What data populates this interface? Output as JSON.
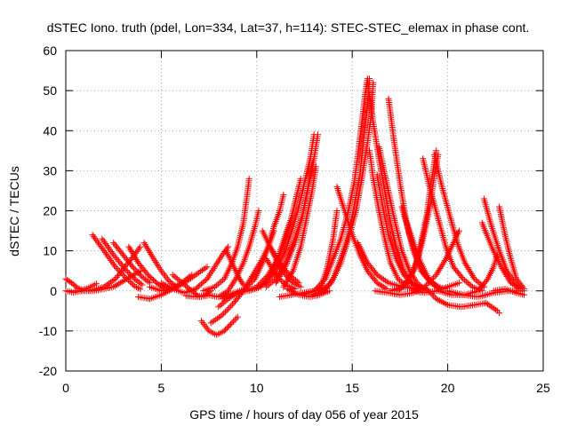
{
  "chart_data": {
    "type": "scatter",
    "title": "dSTEC Iono. truth (pdel, Lon=334, Lat=37, h=114): STEC-STEC_elemax in phase cont.",
    "xlabel": "GPS time / hours of day 056 of year 2015",
    "ylabel": "dSTEC  / TECUs",
    "xlim": [
      0,
      25
    ],
    "ylim": [
      -20,
      60
    ],
    "xticks": [
      0,
      5,
      10,
      15,
      20,
      25
    ],
    "yticks": [
      -20,
      -10,
      0,
      10,
      20,
      30,
      40,
      50,
      60
    ],
    "grid": true,
    "marker": "+",
    "series_color": "#ff0000",
    "arcs": [
      [
        [
          0.0,
          3
        ],
        [
          0.3,
          2
        ],
        [
          0.6,
          0.8
        ],
        [
          1.0,
          0
        ]
      ],
      [
        [
          0.0,
          0
        ],
        [
          0.4,
          -0.4
        ],
        [
          0.8,
          0
        ],
        [
          1.2,
          0.8
        ],
        [
          1.6,
          1.8
        ]
      ],
      [
        [
          1.4,
          14
        ],
        [
          2.0,
          10
        ],
        [
          2.6,
          6
        ],
        [
          3.2,
          3
        ],
        [
          3.6,
          1.2
        ],
        [
          3.9,
          0.4
        ]
      ],
      [
        [
          1.9,
          13
        ],
        [
          2.5,
          9
        ],
        [
          3.1,
          5.5
        ],
        [
          3.6,
          3
        ],
        [
          4.0,
          1.5
        ]
      ],
      [
        [
          2.5,
          12
        ],
        [
          3.0,
          9
        ],
        [
          3.5,
          6
        ],
        [
          4.0,
          3.5
        ],
        [
          4.4,
          2
        ]
      ],
      [
        [
          3.3,
          11
        ],
        [
          3.8,
          7
        ],
        [
          4.3,
          4
        ],
        [
          4.8,
          1.8
        ],
        [
          5.2,
          0.6
        ]
      ],
      [
        [
          4.1,
          12
        ],
        [
          4.6,
          8
        ],
        [
          5.0,
          5
        ],
        [
          5.4,
          2.5
        ],
        [
          5.8,
          1
        ]
      ],
      [
        [
          1.2,
          0
        ],
        [
          2.0,
          1
        ],
        [
          2.6,
          3
        ],
        [
          3.1,
          6
        ],
        [
          3.6,
          9
        ],
        [
          3.9,
          11
        ]
      ],
      [
        [
          0.5,
          0
        ],
        [
          1.5,
          0
        ],
        [
          2.5,
          1
        ],
        [
          3.2,
          3
        ],
        [
          3.9,
          5
        ]
      ],
      [
        [
          3.8,
          -1.5
        ],
        [
          4.4,
          -2
        ],
        [
          5.0,
          -1
        ],
        [
          5.6,
          0.5
        ],
        [
          6.2,
          2.5
        ],
        [
          6.6,
          4
        ]
      ],
      [
        [
          4.4,
          1
        ],
        [
          5.0,
          0
        ],
        [
          5.6,
          0.5
        ],
        [
          6.2,
          2
        ],
        [
          6.8,
          4
        ],
        [
          7.4,
          6
        ]
      ],
      [
        [
          5.0,
          2
        ],
        [
          5.6,
          0.5
        ],
        [
          6.2,
          -0.5
        ],
        [
          6.8,
          0.5
        ],
        [
          7.4,
          3
        ],
        [
          7.8,
          6
        ],
        [
          8.2,
          9
        ],
        [
          8.5,
          11
        ]
      ],
      [
        [
          6.3,
          -1.2
        ],
        [
          6.8,
          -1.5
        ],
        [
          7.3,
          -1
        ],
        [
          7.6,
          0
        ]
      ],
      [
        [
          5.6,
          4
        ],
        [
          6.1,
          2
        ],
        [
          6.6,
          0
        ],
        [
          7.0,
          -1.5
        ],
        [
          7.4,
          -1.2
        ]
      ],
      [
        [
          7.1,
          -7.5
        ],
        [
          7.5,
          -10
        ],
        [
          7.9,
          -11
        ],
        [
          8.3,
          -10
        ],
        [
          8.7,
          -8
        ],
        [
          9.0,
          -6.5
        ]
      ],
      [
        [
          7.6,
          -8
        ],
        [
          8.2,
          -6
        ],
        [
          8.8,
          -3
        ],
        [
          9.3,
          0
        ],
        [
          9.8,
          4
        ],
        [
          10.3,
          8
        ],
        [
          10.6,
          11
        ],
        [
          10.9,
          15
        ]
      ],
      [
        [
          7.4,
          -1
        ],
        [
          8.0,
          -1.5
        ],
        [
          8.5,
          0
        ],
        [
          8.9,
          3
        ],
        [
          9.3,
          7
        ],
        [
          9.6,
          11
        ],
        [
          9.9,
          16
        ],
        [
          10.1,
          20
        ]
      ],
      [
        [
          7.2,
          0
        ],
        [
          7.8,
          1
        ],
        [
          8.3,
          3
        ],
        [
          8.7,
          7
        ],
        [
          9.0,
          11
        ],
        [
          9.3,
          17
        ],
        [
          9.5,
          24
        ],
        [
          9.6,
          28
        ]
      ],
      [
        [
          8.0,
          -4
        ],
        [
          8.5,
          -2
        ],
        [
          9.0,
          -0.5
        ],
        [
          9.5,
          0
        ],
        [
          10.0,
          1
        ],
        [
          10.6,
          4
        ],
        [
          11.1,
          8
        ],
        [
          11.5,
          14
        ],
        [
          11.8,
          18
        ]
      ],
      [
        [
          8.2,
          -2
        ],
        [
          8.8,
          -0.5
        ],
        [
          9.4,
          0.5
        ],
        [
          9.9,
          3
        ],
        [
          10.3,
          7
        ],
        [
          10.6,
          11
        ],
        [
          10.9,
          16
        ],
        [
          11.2,
          20
        ],
        [
          11.4,
          24
        ]
      ],
      [
        [
          8.4,
          10
        ],
        [
          8.8,
          6
        ],
        [
          9.1,
          3
        ],
        [
          9.3,
          1.5
        ]
      ],
      [
        [
          9.6,
          0
        ],
        [
          10.2,
          1
        ],
        [
          10.7,
          4
        ],
        [
          11.1,
          8
        ],
        [
          11.5,
          13
        ],
        [
          11.8,
          18
        ],
        [
          12.1,
          24
        ],
        [
          12.3,
          28
        ]
      ],
      [
        [
          9.9,
          0.5
        ],
        [
          10.5,
          2
        ],
        [
          11.0,
          5
        ],
        [
          11.5,
          10
        ],
        [
          11.9,
          16
        ],
        [
          12.2,
          21
        ],
        [
          12.5,
          27
        ],
        [
          12.8,
          33
        ],
        [
          13.0,
          39
        ]
      ],
      [
        [
          10.5,
          1
        ],
        [
          11.0,
          3
        ],
        [
          11.5,
          7
        ],
        [
          12.0,
          13
        ],
        [
          12.4,
          19
        ],
        [
          12.7,
          26
        ],
        [
          13.0,
          33
        ],
        [
          13.2,
          39
        ]
      ],
      [
        [
          11.0,
          2
        ],
        [
          11.5,
          6
        ],
        [
          12.0,
          12
        ],
        [
          12.4,
          19
        ],
        [
          12.7,
          26
        ],
        [
          12.9,
          32
        ]
      ],
      [
        [
          11.4,
          1
        ],
        [
          11.9,
          5
        ],
        [
          12.3,
          11
        ],
        [
          12.6,
          18
        ],
        [
          12.9,
          25
        ],
        [
          13.1,
          31
        ]
      ],
      [
        [
          10.3,
          15
        ],
        [
          10.7,
          11
        ],
        [
          11.1,
          7
        ],
        [
          11.5,
          4
        ],
        [
          11.9,
          2
        ],
        [
          12.3,
          1
        ]
      ],
      [
        [
          10.7,
          11
        ],
        [
          11.2,
          7
        ],
        [
          11.7,
          4
        ],
        [
          12.2,
          2
        ]
      ],
      [
        [
          10.5,
          8
        ],
        [
          11.0,
          4
        ],
        [
          11.5,
          1.5
        ],
        [
          12.0,
          0.5
        ]
      ],
      [
        [
          11.2,
          -1.5
        ],
        [
          11.8,
          -1
        ],
        [
          12.4,
          -0.5
        ],
        [
          13.0,
          0
        ],
        [
          13.6,
          1
        ]
      ],
      [
        [
          11.6,
          0.5
        ],
        [
          12.2,
          -1
        ],
        [
          12.8,
          -1.5
        ],
        [
          13.3,
          -1
        ],
        [
          13.8,
          0
        ]
      ],
      [
        [
          12.4,
          -1
        ],
        [
          13.0,
          0
        ],
        [
          13.6,
          3
        ],
        [
          14.0,
          8
        ],
        [
          14.4,
          13
        ],
        [
          14.8,
          20
        ],
        [
          15.1,
          27
        ],
        [
          15.3,
          34
        ],
        [
          15.5,
          42
        ],
        [
          15.7,
          50
        ],
        [
          15.8,
          53
        ]
      ],
      [
        [
          12.9,
          -1
        ],
        [
          13.5,
          0
        ],
        [
          14.0,
          3
        ],
        [
          14.4,
          8
        ],
        [
          14.8,
          14
        ],
        [
          15.1,
          21
        ],
        [
          15.4,
          29
        ],
        [
          15.6,
          38
        ],
        [
          15.8,
          46
        ],
        [
          15.9,
          53
        ]
      ],
      [
        [
          13.4,
          -0.5
        ],
        [
          13.9,
          2
        ],
        [
          14.4,
          7
        ],
        [
          14.8,
          13
        ],
        [
          15.2,
          20
        ],
        [
          15.5,
          28
        ],
        [
          15.8,
          37
        ],
        [
          16.0,
          44
        ],
        [
          16.1,
          52
        ]
      ],
      [
        [
          13.3,
          0
        ],
        [
          13.7,
          6
        ],
        [
          14.0,
          13
        ],
        [
          14.2,
          20
        ]
      ],
      [
        [
          14.2,
          26
        ],
        [
          14.6,
          20
        ],
        [
          15.0,
          14
        ],
        [
          15.4,
          9
        ],
        [
          15.8,
          5
        ],
        [
          16.3,
          2
        ],
        [
          16.8,
          0.5
        ]
      ],
      [
        [
          15.3,
          12
        ],
        [
          15.8,
          7
        ],
        [
          16.3,
          4
        ],
        [
          16.9,
          2
        ],
        [
          17.6,
          1
        ],
        [
          18.4,
          0.5
        ]
      ],
      [
        [
          15.9,
          35
        ],
        [
          16.1,
          28
        ],
        [
          16.4,
          20
        ],
        [
          16.7,
          13
        ],
        [
          17.0,
          7
        ],
        [
          17.4,
          3
        ],
        [
          17.9,
          1
        ],
        [
          18.4,
          0
        ]
      ],
      [
        [
          16.3,
          29
        ],
        [
          16.6,
          21
        ],
        [
          16.9,
          14
        ],
        [
          17.3,
          8
        ],
        [
          17.7,
          4
        ],
        [
          18.2,
          1.5
        ],
        [
          18.7,
          0.5
        ]
      ],
      [
        [
          16.4,
          36
        ],
        [
          16.8,
          27
        ],
        [
          17.2,
          18
        ],
        [
          17.6,
          10
        ],
        [
          18.0,
          5
        ],
        [
          18.4,
          2
        ],
        [
          18.9,
          0
        ]
      ],
      [
        [
          15.8,
          52
        ],
        [
          16.1,
          42
        ],
        [
          16.4,
          33
        ],
        [
          16.7,
          25
        ],
        [
          17.0,
          17
        ],
        [
          17.3,
          11
        ],
        [
          17.7,
          5
        ],
        [
          18.1,
          2
        ],
        [
          18.6,
          0.5
        ]
      ],
      [
        [
          16.2,
          0
        ],
        [
          16.9,
          -0.5
        ],
        [
          17.5,
          -1
        ],
        [
          18.2,
          -0.5
        ],
        [
          18.8,
          1
        ],
        [
          19.4,
          4
        ],
        [
          19.9,
          8
        ],
        [
          20.3,
          12
        ],
        [
          20.6,
          15
        ]
      ],
      [
        [
          17.0,
          0
        ],
        [
          17.6,
          1
        ],
        [
          18.1,
          4
        ],
        [
          18.5,
          9
        ],
        [
          18.8,
          15
        ],
        [
          19.1,
          22
        ],
        [
          19.3,
          29
        ],
        [
          19.5,
          34
        ]
      ],
      [
        [
          17.4,
          0
        ],
        [
          17.9,
          2
        ],
        [
          18.3,
          6
        ],
        [
          18.6,
          12
        ],
        [
          18.9,
          19
        ],
        [
          19.1,
          26
        ],
        [
          19.3,
          32
        ],
        [
          19.4,
          35
        ]
      ],
      [
        [
          16.9,
          48
        ],
        [
          17.2,
          37
        ],
        [
          17.5,
          27
        ],
        [
          17.8,
          18
        ],
        [
          18.2,
          10
        ],
        [
          18.6,
          5
        ],
        [
          19.1,
          2
        ],
        [
          19.6,
          0.5
        ]
      ],
      [
        [
          17.6,
          21
        ],
        [
          18.0,
          14
        ],
        [
          18.4,
          8
        ],
        [
          18.8,
          4
        ],
        [
          19.3,
          1.5
        ],
        [
          19.8,
          0.5
        ]
      ],
      [
        [
          17.8,
          18
        ],
        [
          18.2,
          12
        ],
        [
          18.6,
          7
        ],
        [
          19.0,
          3
        ],
        [
          19.5,
          1
        ]
      ],
      [
        [
          18.2,
          0
        ],
        [
          18.8,
          -0.5
        ],
        [
          19.4,
          0
        ],
        [
          20.0,
          1
        ],
        [
          20.6,
          2
        ]
      ],
      [
        [
          18.7,
          33
        ],
        [
          19.1,
          25
        ],
        [
          19.5,
          18
        ],
        [
          19.9,
          11
        ],
        [
          20.3,
          6
        ],
        [
          20.8,
          3
        ],
        [
          21.3,
          1
        ],
        [
          21.8,
          0
        ]
      ],
      [
        [
          19.3,
          34
        ],
        [
          19.7,
          26
        ],
        [
          20.1,
          19
        ],
        [
          20.5,
          12
        ],
        [
          20.9,
          7
        ],
        [
          21.4,
          3
        ],
        [
          21.9,
          1
        ]
      ],
      [
        [
          18.8,
          1
        ],
        [
          19.4,
          -2
        ],
        [
          20.0,
          -3.5
        ],
        [
          20.7,
          -4
        ],
        [
          21.4,
          -3.5
        ],
        [
          22.0,
          -3
        ],
        [
          22.6,
          -5
        ],
        [
          22.7,
          -5.5
        ]
      ],
      [
        [
          19.5,
          0
        ],
        [
          20.2,
          -1
        ],
        [
          20.9,
          -1
        ],
        [
          21.6,
          0
        ],
        [
          22.1,
          3
        ],
        [
          22.4,
          6
        ],
        [
          22.6,
          9
        ]
      ],
      [
        [
          21.8,
          17
        ],
        [
          22.3,
          11
        ],
        [
          22.8,
          6
        ],
        [
          23.3,
          2
        ],
        [
          23.8,
          0.5
        ]
      ],
      [
        [
          21.9,
          23
        ],
        [
          22.3,
          16
        ],
        [
          22.7,
          10
        ],
        [
          23.1,
          5
        ],
        [
          23.5,
          2
        ],
        [
          23.9,
          0.5
        ]
      ],
      [
        [
          22.7,
          21
        ],
        [
          23.0,
          14
        ],
        [
          23.3,
          8
        ],
        [
          23.6,
          3
        ],
        [
          24.0,
          0.5
        ]
      ],
      [
        [
          22.4,
          0
        ],
        [
          23.0,
          0.5
        ],
        [
          23.6,
          -0.5
        ],
        [
          24.0,
          -1
        ]
      ],
      [
        [
          20.0,
          0
        ],
        [
          20.8,
          -1
        ],
        [
          21.6,
          -1.5
        ],
        [
          22.4,
          -0.5
        ],
        [
          23.2,
          0
        ],
        [
          24.0,
          0
        ]
      ]
    ]
  }
}
